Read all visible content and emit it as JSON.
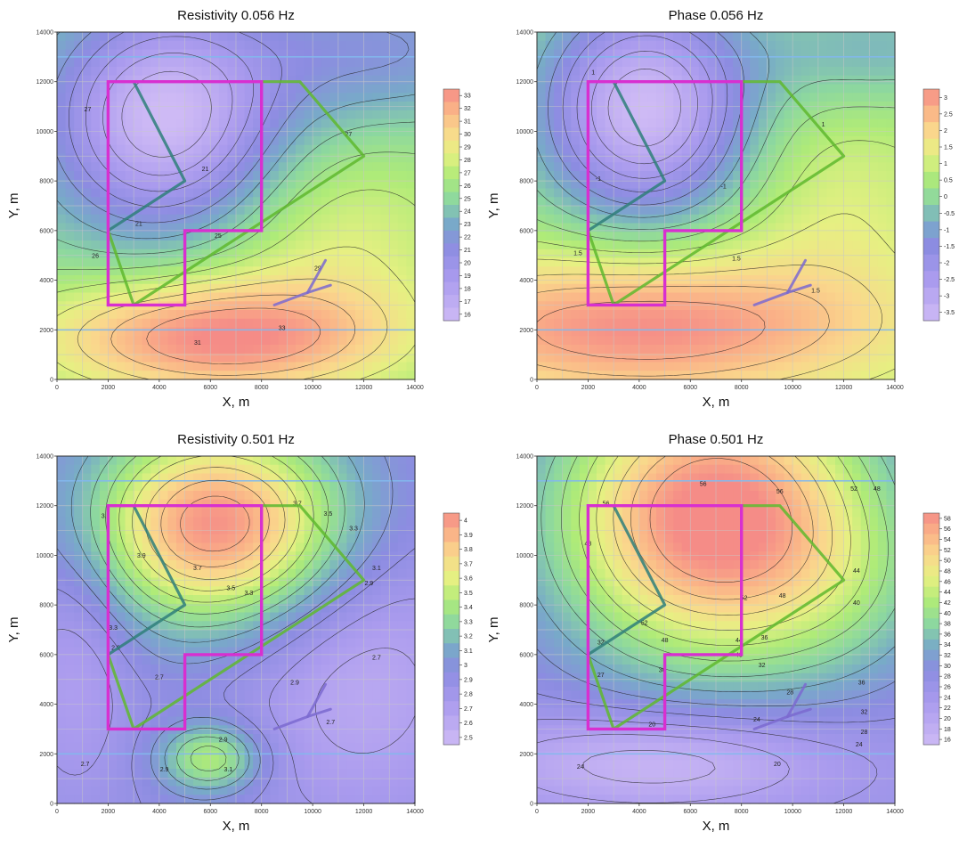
{
  "chart_data": [
    {
      "type": "heatmap",
      "id": "res056",
      "title": "Resistivity 0.056 Hz",
      "xlabel": "X, m",
      "ylabel": "Y, m",
      "xlim": [
        0,
        14000
      ],
      "ylim": [
        0,
        14000
      ],
      "xticks": [
        0,
        2000,
        4000,
        6000,
        8000,
        10000,
        12000,
        14000
      ],
      "yticks": [
        0,
        2000,
        4000,
        6000,
        8000,
        10000,
        12000,
        14000
      ],
      "grid": true,
      "legend": "colorbar-right",
      "colorbar_ticks": [
        "33",
        "32",
        "31",
        "30",
        "29",
        "28",
        "27",
        "26",
        "25",
        "24",
        "23",
        "22",
        "21",
        "20",
        "19",
        "18",
        "17",
        "16"
      ],
      "contour_labels": [
        {
          "text": "27",
          "x": 1200,
          "y": 10800
        },
        {
          "text": "21",
          "x": 5800,
          "y": 8400
        },
        {
          "text": "21",
          "x": 3200,
          "y": 6200
        },
        {
          "text": "25",
          "x": 6300,
          "y": 5700
        },
        {
          "text": "26",
          "x": 1500,
          "y": 4900
        },
        {
          "text": "27",
          "x": 11400,
          "y": 9800
        },
        {
          "text": "29",
          "x": 10200,
          "y": 4400
        },
        {
          "text": "31",
          "x": 5500,
          "y": 1400
        },
        {
          "text": "33",
          "x": 8800,
          "y": 2000
        }
      ],
      "polygon_magenta": [
        [
          2000,
          12000
        ],
        [
          8000,
          12000
        ],
        [
          8000,
          6000
        ],
        [
          5000,
          6000
        ],
        [
          5000,
          3000
        ],
        [
          2000,
          3000
        ]
      ],
      "polyline_green": [
        [
          2000,
          6000
        ],
        [
          3000,
          3000
        ],
        [
          12000,
          9000
        ],
        [
          9500,
          12000
        ],
        [
          8000,
          12000
        ]
      ],
      "polyline_teal": [
        [
          3000,
          12000
        ],
        [
          5000,
          8000
        ],
        [
          2000,
          6000
        ]
      ],
      "polyline_river": [
        [
          8500,
          3000
        ],
        [
          9800,
          3500
        ],
        [
          10500,
          4800
        ]
      ],
      "gridlines_blue_y": [
        13000,
        2000
      ]
    },
    {
      "type": "heatmap",
      "id": "phase056",
      "title": "Phase 0.056 Hz",
      "xlabel": "X, m",
      "ylabel": "Y, m",
      "xlim": [
        0,
        14000
      ],
      "ylim": [
        0,
        14000
      ],
      "xticks": [
        0,
        2000,
        4000,
        6000,
        8000,
        10000,
        12000,
        14000
      ],
      "yticks": [
        0,
        2000,
        4000,
        6000,
        8000,
        10000,
        12000,
        14000
      ],
      "grid": true,
      "legend": "colorbar-right",
      "colorbar_ticks": [
        "3",
        "2.5",
        "2",
        "1.5",
        "1",
        "0.5",
        "0",
        "-0.5",
        "-1",
        "-1.5",
        "-2",
        "-2.5",
        "-3",
        "-3.5"
      ],
      "contour_labels": [
        {
          "text": "1",
          "x": 2200,
          "y": 12300
        },
        {
          "text": "-1",
          "x": 2400,
          "y": 8000
        },
        {
          "text": "-1",
          "x": 7300,
          "y": 7700
        },
        {
          "text": "1",
          "x": 11200,
          "y": 10200
        },
        {
          "text": "1.5",
          "x": 1600,
          "y": 5000
        },
        {
          "text": "1.5",
          "x": 7800,
          "y": 4800
        },
        {
          "text": "1.5",
          "x": 10900,
          "y": 3500
        }
      ],
      "polygon_magenta": [
        [
          2000,
          12000
        ],
        [
          8000,
          12000
        ],
        [
          8000,
          6000
        ],
        [
          5000,
          6000
        ],
        [
          5000,
          3000
        ],
        [
          2000,
          3000
        ]
      ],
      "polyline_green": [
        [
          2000,
          6000
        ],
        [
          3000,
          3000
        ],
        [
          12000,
          9000
        ],
        [
          9500,
          12000
        ],
        [
          8000,
          12000
        ]
      ],
      "polyline_teal": [
        [
          3000,
          12000
        ],
        [
          5000,
          8000
        ],
        [
          2000,
          6000
        ]
      ],
      "polyline_river": [
        [
          8500,
          3000
        ],
        [
          9800,
          3500
        ],
        [
          10500,
          4800
        ]
      ],
      "gridlines_blue_y": [
        13000,
        2000
      ]
    },
    {
      "type": "heatmap",
      "id": "res501",
      "title": "Resistivity 0.501 Hz",
      "xlabel": "X, m",
      "ylabel": "Y, m",
      "xlim": [
        0,
        14000
      ],
      "ylim": [
        0,
        14000
      ],
      "xticks": [
        0,
        2000,
        4000,
        6000,
        8000,
        10000,
        12000,
        14000
      ],
      "yticks": [
        0,
        2000,
        4000,
        6000,
        8000,
        10000,
        12000,
        14000
      ],
      "grid": true,
      "legend": "colorbar-right",
      "colorbar_ticks": [
        "4",
        "3.9",
        "3.8",
        "3.7",
        "3.6",
        "3.5",
        "3.4",
        "3.3",
        "3.2",
        "3.1",
        "3",
        "2.9",
        "2.8",
        "2.7",
        "2.6",
        "2.5"
      ],
      "contour_labels": [
        {
          "text": "3.1",
          "x": 1900,
          "y": 11500
        },
        {
          "text": "3.7",
          "x": 9400,
          "y": 12000
        },
        {
          "text": "3.5",
          "x": 10600,
          "y": 11600
        },
        {
          "text": "3.3",
          "x": 11600,
          "y": 11000
        },
        {
          "text": "3.9",
          "x": 3300,
          "y": 9900
        },
        {
          "text": "3.7",
          "x": 5500,
          "y": 9400
        },
        {
          "text": "3.5",
          "x": 6800,
          "y": 8600
        },
        {
          "text": "3.3",
          "x": 7500,
          "y": 8400
        },
        {
          "text": "3.1",
          "x": 12500,
          "y": 9400
        },
        {
          "text": "2.9",
          "x": 12200,
          "y": 8800
        },
        {
          "text": "3.3",
          "x": 2200,
          "y": 7000
        },
        {
          "text": "2.9",
          "x": 2300,
          "y": 6200
        },
        {
          "text": "2.7",
          "x": 4000,
          "y": 5000
        },
        {
          "text": "2.7",
          "x": 12500,
          "y": 5800
        },
        {
          "text": "2.9",
          "x": 9300,
          "y": 4800
        },
        {
          "text": "2.7",
          "x": 10700,
          "y": 3200
        },
        {
          "text": "2.9",
          "x": 6500,
          "y": 2500
        },
        {
          "text": "3.1",
          "x": 6700,
          "y": 1300
        },
        {
          "text": "2.9",
          "x": 4200,
          "y": 1300
        },
        {
          "text": "2.7",
          "x": 1100,
          "y": 1500
        }
      ],
      "polygon_magenta": [
        [
          2000,
          12000
        ],
        [
          8000,
          12000
        ],
        [
          8000,
          6000
        ],
        [
          5000,
          6000
        ],
        [
          5000,
          3000
        ],
        [
          2000,
          3000
        ]
      ],
      "polyline_green": [
        [
          2000,
          6000
        ],
        [
          3000,
          3000
        ],
        [
          12000,
          9000
        ],
        [
          9500,
          12000
        ],
        [
          8000,
          12000
        ]
      ],
      "polyline_teal": [
        [
          3000,
          12000
        ],
        [
          5000,
          8000
        ],
        [
          2000,
          6000
        ]
      ],
      "polyline_river": [
        [
          8500,
          3000
        ],
        [
          9800,
          3500
        ],
        [
          10500,
          4800
        ]
      ],
      "gridlines_blue_y": [
        13000,
        2000
      ]
    },
    {
      "type": "heatmap",
      "id": "phase501",
      "title": "Phase 0.501 Hz",
      "xlabel": "X, m",
      "ylabel": "Y, m",
      "xlim": [
        0,
        14000
      ],
      "ylim": [
        0,
        14000
      ],
      "xticks": [
        0,
        2000,
        4000,
        6000,
        8000,
        10000,
        12000,
        14000
      ],
      "yticks": [
        0,
        2000,
        4000,
        6000,
        8000,
        10000,
        12000,
        14000
      ],
      "grid": true,
      "legend": "colorbar-right",
      "colorbar_ticks": [
        "58",
        "56",
        "54",
        "52",
        "50",
        "48",
        "46",
        "44",
        "42",
        "40",
        "38",
        "36",
        "34",
        "32",
        "30",
        "28",
        "26",
        "24",
        "22",
        "20",
        "18",
        "16"
      ],
      "contour_labels": [
        {
          "text": "56",
          "x": 6500,
          "y": 12800
        },
        {
          "text": "56",
          "x": 9500,
          "y": 12500
        },
        {
          "text": "52",
          "x": 12400,
          "y": 12600
        },
        {
          "text": "48",
          "x": 13300,
          "y": 12600
        },
        {
          "text": "56",
          "x": 2700,
          "y": 12000
        },
        {
          "text": "48",
          "x": 2000,
          "y": 10400
        },
        {
          "text": "52",
          "x": 8100,
          "y": 8200
        },
        {
          "text": "48",
          "x": 9600,
          "y": 8300
        },
        {
          "text": "44",
          "x": 12500,
          "y": 9300
        },
        {
          "text": "40",
          "x": 12500,
          "y": 8000
        },
        {
          "text": "52",
          "x": 4200,
          "y": 7200
        },
        {
          "text": "48",
          "x": 5000,
          "y": 6500
        },
        {
          "text": "44",
          "x": 7900,
          "y": 6500
        },
        {
          "text": "40",
          "x": 7900,
          "y": 5900
        },
        {
          "text": "36",
          "x": 8900,
          "y": 6600
        },
        {
          "text": "32",
          "x": 2500,
          "y": 6400
        },
        {
          "text": "36",
          "x": 4900,
          "y": 5300
        },
        {
          "text": "32",
          "x": 8800,
          "y": 5500
        },
        {
          "text": "27",
          "x": 2500,
          "y": 5100
        },
        {
          "text": "36",
          "x": 12700,
          "y": 4800
        },
        {
          "text": "28",
          "x": 9900,
          "y": 4400
        },
        {
          "text": "20",
          "x": 4500,
          "y": 3100
        },
        {
          "text": "24",
          "x": 8600,
          "y": 3300
        },
        {
          "text": "32",
          "x": 12800,
          "y": 3600
        },
        {
          "text": "28",
          "x": 12800,
          "y": 2800
        },
        {
          "text": "24",
          "x": 12600,
          "y": 2300
        },
        {
          "text": "24",
          "x": 1700,
          "y": 1400
        },
        {
          "text": "20",
          "x": 9400,
          "y": 1500
        }
      ],
      "polygon_magenta": [
        [
          2000,
          12000
        ],
        [
          8000,
          12000
        ],
        [
          8000,
          6000
        ],
        [
          5000,
          6000
        ],
        [
          5000,
          3000
        ],
        [
          2000,
          3000
        ]
      ],
      "polyline_green": [
        [
          2000,
          6000
        ],
        [
          3000,
          3000
        ],
        [
          12000,
          9000
        ],
        [
          9500,
          12000
        ],
        [
          8000,
          12000
        ]
      ],
      "polyline_teal": [
        [
          3000,
          12000
        ],
        [
          5000,
          8000
        ],
        [
          2000,
          6000
        ]
      ],
      "polyline_river": [
        [
          8500,
          3000
        ],
        [
          9800,
          3500
        ],
        [
          10500,
          4800
        ]
      ],
      "gridlines_blue_y": [
        13000,
        2000
      ]
    }
  ]
}
